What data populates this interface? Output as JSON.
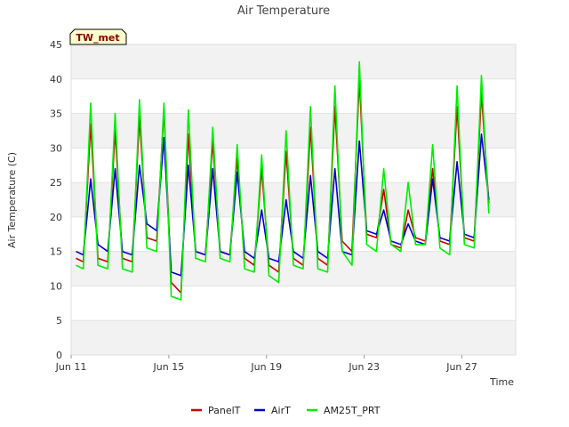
{
  "chart_data": {
    "type": "line",
    "title": "Air Temperature",
    "xlabel": "Time",
    "ylabel": "Air Temperature (C)",
    "badge": "TW_met",
    "x_tick_labels": [
      "Jun 11",
      "Jun 15",
      "Jun 19",
      "Jun 23",
      "Jun 27"
    ],
    "x_tick_days": [
      0,
      4,
      8,
      12,
      16
    ],
    "xlim_days": [
      0,
      18.2
    ],
    "ylim": [
      0,
      45
    ],
    "y_ticks": [
      0,
      5,
      10,
      15,
      20,
      25,
      30,
      35,
      40,
      45
    ],
    "grid": true,
    "legend_position": "bottom-center",
    "x_units": "days since Jun 11",
    "series": [
      {
        "name": "PanelT",
        "color": "#cc0000",
        "points": [
          [
            0.2,
            14
          ],
          [
            0.5,
            13.5
          ],
          [
            0.8,
            33.5
          ],
          [
            1.1,
            14
          ],
          [
            1.5,
            13.5
          ],
          [
            1.8,
            32.5
          ],
          [
            2.1,
            14
          ],
          [
            2.5,
            13.5
          ],
          [
            2.8,
            34.5
          ],
          [
            3.1,
            17
          ],
          [
            3.5,
            16.5
          ],
          [
            3.8,
            35.5
          ],
          [
            4.1,
            10.5
          ],
          [
            4.5,
            9
          ],
          [
            4.8,
            32
          ],
          [
            5.1,
            15
          ],
          [
            5.5,
            14.5
          ],
          [
            5.8,
            31
          ],
          [
            6.1,
            15
          ],
          [
            6.5,
            14.5
          ],
          [
            6.8,
            28.5
          ],
          [
            7.1,
            14
          ],
          [
            7.5,
            13
          ],
          [
            7.8,
            27
          ],
          [
            8.1,
            13
          ],
          [
            8.5,
            12
          ],
          [
            8.8,
            29.5
          ],
          [
            9.1,
            14
          ],
          [
            9.5,
            13
          ],
          [
            9.8,
            33
          ],
          [
            10.1,
            14
          ],
          [
            10.5,
            13
          ],
          [
            10.8,
            36
          ],
          [
            11.1,
            16.5
          ],
          [
            11.5,
            15
          ],
          [
            11.8,
            40
          ],
          [
            12.1,
            17.5
          ],
          [
            12.5,
            17
          ],
          [
            12.8,
            24
          ],
          [
            13.1,
            16
          ],
          [
            13.5,
            15.5
          ],
          [
            13.8,
            21
          ],
          [
            14.1,
            17
          ],
          [
            14.5,
            16.5
          ],
          [
            14.8,
            27
          ],
          [
            15.1,
            16.5
          ],
          [
            15.5,
            16
          ],
          [
            15.8,
            36
          ],
          [
            16.1,
            17
          ],
          [
            16.5,
            16.5
          ],
          [
            16.8,
            38
          ],
          [
            17.1,
            22
          ]
        ]
      },
      {
        "name": "AirT",
        "color": "#0000cc",
        "points": [
          [
            0.2,
            15
          ],
          [
            0.5,
            14.5
          ],
          [
            0.8,
            25.5
          ],
          [
            1.1,
            16
          ],
          [
            1.5,
            15
          ],
          [
            1.8,
            27
          ],
          [
            2.1,
            15
          ],
          [
            2.5,
            14.5
          ],
          [
            2.8,
            27.5
          ],
          [
            3.1,
            19
          ],
          [
            3.5,
            18
          ],
          [
            3.8,
            31.5
          ],
          [
            4.1,
            12
          ],
          [
            4.5,
            11.5
          ],
          [
            4.8,
            27.5
          ],
          [
            5.1,
            15
          ],
          [
            5.5,
            14.5
          ],
          [
            5.8,
            27
          ],
          [
            6.1,
            15
          ],
          [
            6.5,
            14.5
          ],
          [
            6.8,
            26.5
          ],
          [
            7.1,
            15
          ],
          [
            7.5,
            14
          ],
          [
            7.8,
            21
          ],
          [
            8.1,
            14
          ],
          [
            8.5,
            13.5
          ],
          [
            8.8,
            22.5
          ],
          [
            9.1,
            15
          ],
          [
            9.5,
            14
          ],
          [
            9.8,
            26
          ],
          [
            10.1,
            15
          ],
          [
            10.5,
            14
          ],
          [
            10.8,
            27
          ],
          [
            11.1,
            15
          ],
          [
            11.5,
            14.5
          ],
          [
            11.8,
            31
          ],
          [
            12.1,
            18
          ],
          [
            12.5,
            17.5
          ],
          [
            12.8,
            21
          ],
          [
            13.1,
            16.5
          ],
          [
            13.5,
            16
          ],
          [
            13.8,
            19
          ],
          [
            14.1,
            16.5
          ],
          [
            14.5,
            16
          ],
          [
            14.8,
            25.5
          ],
          [
            15.1,
            17
          ],
          [
            15.5,
            16.5
          ],
          [
            15.8,
            28
          ],
          [
            16.1,
            17.5
          ],
          [
            16.5,
            17
          ],
          [
            16.8,
            32
          ],
          [
            17.1,
            22.5
          ]
        ]
      },
      {
        "name": "AM25T_PRT",
        "color": "#00ee00",
        "points": [
          [
            0.2,
            13
          ],
          [
            0.5,
            12.5
          ],
          [
            0.8,
            36.5
          ],
          [
            1.1,
            13
          ],
          [
            1.5,
            12.5
          ],
          [
            1.8,
            35
          ],
          [
            2.1,
            12.5
          ],
          [
            2.5,
            12
          ],
          [
            2.8,
            37
          ],
          [
            3.1,
            15.5
          ],
          [
            3.5,
            15
          ],
          [
            3.8,
            36.5
          ],
          [
            4.1,
            8.5
          ],
          [
            4.5,
            8
          ],
          [
            4.8,
            35.5
          ],
          [
            5.1,
            14
          ],
          [
            5.5,
            13.5
          ],
          [
            5.8,
            33
          ],
          [
            6.1,
            14
          ],
          [
            6.5,
            13.5
          ],
          [
            6.8,
            30.5
          ],
          [
            7.1,
            12.5
          ],
          [
            7.5,
            12
          ],
          [
            7.8,
            29
          ],
          [
            8.1,
            11.5
          ],
          [
            8.5,
            10.5
          ],
          [
            8.8,
            32.5
          ],
          [
            9.1,
            13
          ],
          [
            9.5,
            12.5
          ],
          [
            9.8,
            36
          ],
          [
            10.1,
            12.5
          ],
          [
            10.5,
            12
          ],
          [
            10.8,
            39
          ],
          [
            11.1,
            15
          ],
          [
            11.5,
            13
          ],
          [
            11.8,
            42.5
          ],
          [
            12.1,
            16
          ],
          [
            12.5,
            15
          ],
          [
            12.8,
            27
          ],
          [
            13.1,
            16
          ],
          [
            13.5,
            15
          ],
          [
            13.8,
            25
          ],
          [
            14.1,
            16
          ],
          [
            14.5,
            16
          ],
          [
            14.8,
            30.5
          ],
          [
            15.1,
            15.5
          ],
          [
            15.5,
            14.5
          ],
          [
            15.8,
            39
          ],
          [
            16.1,
            16
          ],
          [
            16.5,
            15.5
          ],
          [
            16.8,
            40.5
          ],
          [
            17.1,
            20.5
          ]
        ]
      }
    ]
  }
}
